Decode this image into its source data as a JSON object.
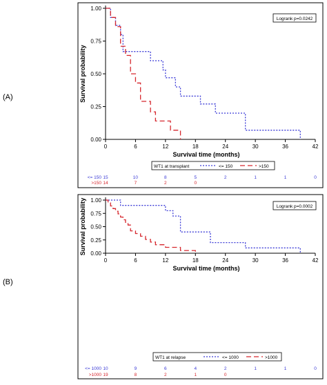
{
  "panels": [
    {
      "label": "(A)"
    },
    {
      "label": "(B)"
    }
  ],
  "colors": {
    "low_series": "#3a3ad6",
    "high_series": "#d6262c",
    "axis": "#000000",
    "frame": "#000000"
  },
  "chart_data": [
    {
      "type": "line",
      "subtype": "kaplan-meier step",
      "xlabel": "Survival time (months)",
      "ylabel": "Survival probability",
      "xlim": [
        0,
        42
      ],
      "ylim": [
        0,
        1
      ],
      "xticks": [
        "0",
        "6",
        "12",
        "18",
        "24",
        "30",
        "36",
        "42"
      ],
      "yticks": [
        "0.00",
        "0.25",
        "0.50",
        "0.75",
        "1.00"
      ],
      "grid": false,
      "stat_label": "Logrank p=0.0242",
      "legend_title": "WT1 at transplant",
      "series": [
        {
          "name": "<= 150",
          "style": "dotted",
          "x": [
            0,
            1,
            2,
            3,
            3.5,
            9,
            11.5,
            12,
            14,
            15,
            19,
            22,
            28,
            39
          ],
          "y": [
            1.0,
            0.93,
            0.87,
            0.8,
            0.67,
            0.6,
            0.53,
            0.47,
            0.4,
            0.33,
            0.27,
            0.2,
            0.07,
            0.0
          ]
        },
        {
          "name": ">150",
          "style": "dashed",
          "x": [
            0,
            1,
            2,
            3,
            4,
            5,
            6,
            7,
            9,
            10,
            13,
            15
          ],
          "y": [
            1.0,
            0.93,
            0.86,
            0.71,
            0.64,
            0.5,
            0.43,
            0.29,
            0.21,
            0.14,
            0.07,
            0.0
          ]
        }
      ],
      "risk_table": {
        "times": [
          0,
          6,
          12,
          18,
          24,
          30,
          36,
          42
        ],
        "rows": [
          {
            "label": "<= 150",
            "values": [
              "15",
              "10",
              "8",
              "5",
              "2",
              "1",
              "1",
              "0"
            ]
          },
          {
            "label": ">150",
            "values": [
              "14",
              "7",
              "2",
              "0",
              "",
              "",
              "",
              ""
            ]
          }
        ]
      }
    },
    {
      "type": "line",
      "subtype": "kaplan-meier step",
      "xlabel": "Survival time (months)",
      "ylabel": "Survival probability",
      "xlim": [
        0,
        42
      ],
      "ylim": [
        0,
        1
      ],
      "xticks": [
        "0",
        "6",
        "12",
        "18",
        "24",
        "30",
        "36",
        "42"
      ],
      "yticks": [
        "0.00",
        "0.25",
        "0.50",
        "0.75",
        "1.00"
      ],
      "grid": false,
      "stat_label": "Logrank p=0.0002",
      "legend_title": "WT1 at relapse",
      "series": [
        {
          "name": "<= 1000",
          "style": "dotted",
          "x": [
            0,
            3,
            12,
            13.5,
            15,
            21,
            28,
            39
          ],
          "y": [
            1.0,
            0.9,
            0.8,
            0.7,
            0.4,
            0.2,
            0.1,
            0.0
          ]
        },
        {
          "name": ">1000",
          "style": "dashed",
          "x": [
            0,
            0.5,
            1,
            1.5,
            2,
            2.5,
            3,
            3.5,
            4,
            4.5,
            5,
            6,
            7,
            8,
            9,
            10,
            12,
            15,
            18
          ],
          "y": [
            1.0,
            0.95,
            0.89,
            0.84,
            0.79,
            0.74,
            0.68,
            0.63,
            0.58,
            0.53,
            0.42,
            0.37,
            0.32,
            0.26,
            0.21,
            0.16,
            0.11,
            0.05,
            0.0
          ]
        }
      ],
      "risk_table": {
        "times": [
          0,
          6,
          12,
          18,
          24,
          30,
          36,
          42
        ],
        "rows": [
          {
            "label": "<= 1000",
            "values": [
              "10",
              "9",
              "6",
              "4",
              "2",
              "1",
              "1",
              "0"
            ]
          },
          {
            "label": ">1000",
            "values": [
              "19",
              "8",
              "2",
              "1",
              "0",
              "",
              "",
              ""
            ]
          }
        ]
      }
    }
  ]
}
